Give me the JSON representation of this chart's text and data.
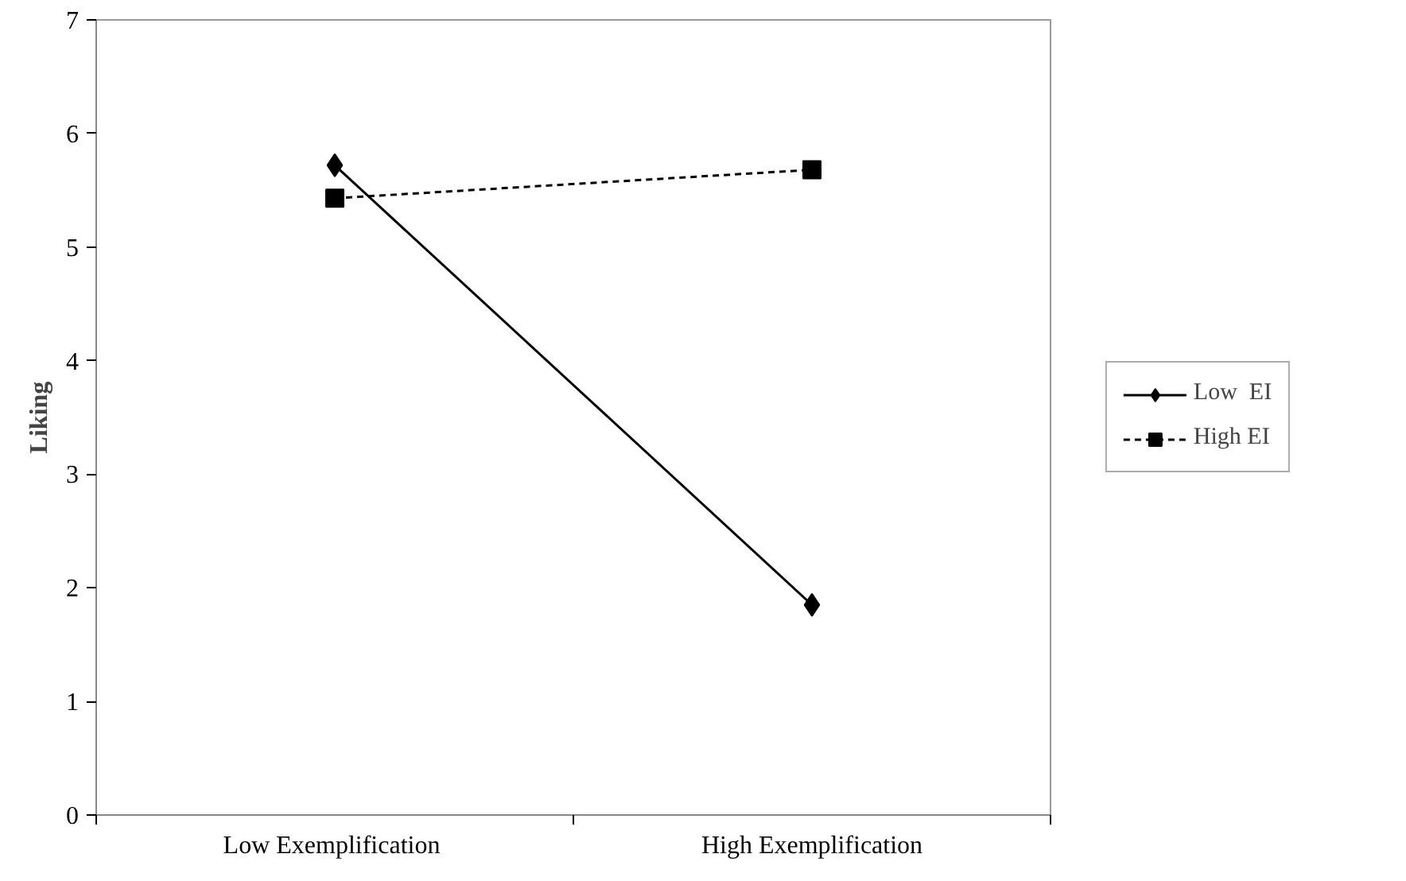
{
  "chart_data": {
    "type": "line",
    "ylabel": "Liking",
    "categories": [
      "Low  Exemplification",
      "High Exemplification"
    ],
    "series": [
      {
        "name": "Low  EI",
        "color": "#000000",
        "values": [
          5.72,
          1.85
        ],
        "marker": "diamond",
        "line_style": "solid"
      },
      {
        "name": "High EI",
        "color": "#000000",
        "values": [
          5.43,
          5.68
        ],
        "marker": "square",
        "line_style": "dashed"
      }
    ],
    "ylim": [
      0,
      7
    ],
    "yticks": [
      0,
      1,
      2,
      3,
      4,
      5,
      6,
      7
    ],
    "grid": false,
    "legend": "right"
  }
}
